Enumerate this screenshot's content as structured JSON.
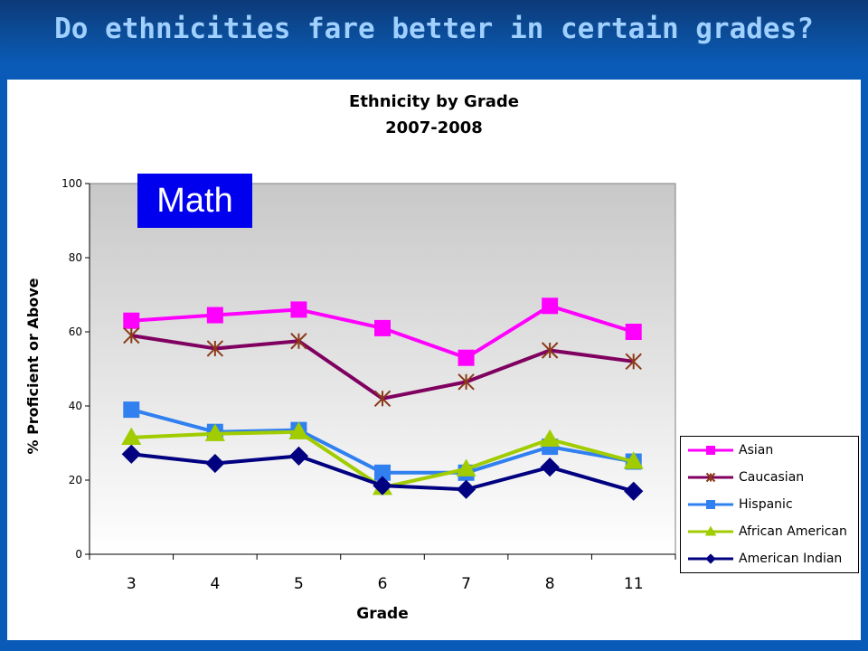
{
  "slide": {
    "title": "Do ethnicities fare better in certain grades?",
    "subject_label": "Math"
  },
  "colors": {
    "background": "#0a5bb8",
    "title": "#9fd0ff",
    "label_box": "#0000ee"
  },
  "chart_data": {
    "type": "line",
    "title": "Ethnicity by Grade",
    "subtitle": "2007-2008",
    "xlabel": "Grade",
    "ylabel": "% Proficient or Above",
    "categories": [
      "3",
      "4",
      "5",
      "6",
      "7",
      "8",
      "11"
    ],
    "ylim": [
      0,
      100
    ],
    "yticks": [
      0,
      20,
      40,
      60,
      80,
      100
    ],
    "grid": false,
    "legend_position": "right",
    "series": [
      {
        "name": "Asian",
        "color": "#ff00ff",
        "marker": "square",
        "values": [
          63,
          64.5,
          66,
          61,
          53,
          67,
          60
        ]
      },
      {
        "name": "Caucasian",
        "color": "#800060",
        "marker": "star",
        "values": [
          59,
          55.5,
          57.5,
          42,
          46.5,
          55,
          52
        ]
      },
      {
        "name": "Hispanic",
        "color": "#3080f0",
        "marker": "square",
        "values": [
          39,
          33,
          33.5,
          22,
          22,
          29,
          25
        ]
      },
      {
        "name": "African American",
        "color": "#a0cc00",
        "marker": "triangle",
        "values": [
          31.5,
          32.5,
          33,
          18,
          23,
          31,
          25
        ]
      },
      {
        "name": "American Indian",
        "color": "#000080",
        "marker": "diamond",
        "values": [
          27,
          24.5,
          26.5,
          18.5,
          17.5,
          23.5,
          17
        ]
      }
    ]
  }
}
